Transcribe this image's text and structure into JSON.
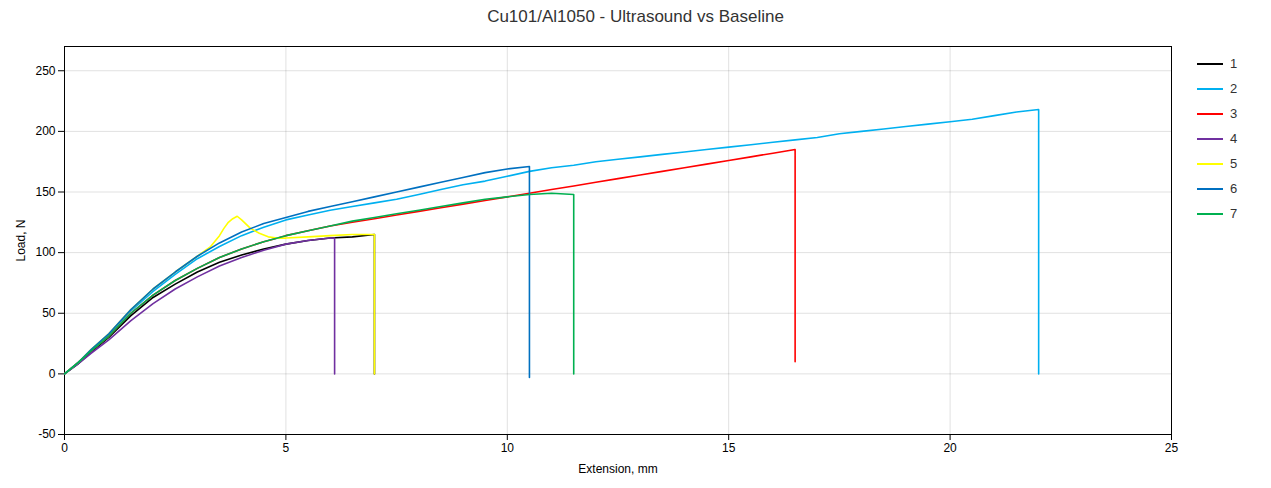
{
  "chart_data": {
    "type": "line",
    "title": "Cu101/Al1050 - Ultrasound vs Baseline",
    "xlabel": "Extension, mm",
    "ylabel": "Load, N",
    "xlim": [
      0,
      25
    ],
    "ylim": [
      -50,
      270
    ],
    "xticks": [
      0,
      5,
      10,
      15,
      20,
      25
    ],
    "yticks": [
      -50,
      0,
      50,
      100,
      150,
      200,
      250
    ],
    "grid": true,
    "legend": "right",
    "series": [
      {
        "name": "1",
        "color": "#000000",
        "x": [
          0,
          0.3,
          0.6,
          1.0,
          1.5,
          2.0,
          2.5,
          3.0,
          3.5,
          4.0,
          4.5,
          5.0,
          5.5,
          6.0,
          6.5,
          7.0,
          7.0
        ],
        "values": [
          0,
          8,
          18,
          30,
          48,
          63,
          74,
          84,
          92,
          98,
          103,
          107,
          110,
          112,
          113,
          115,
          0
        ]
      },
      {
        "name": "2",
        "color": "#00b0f0",
        "x": [
          0,
          0.3,
          0.6,
          1.0,
          1.5,
          2.0,
          2.5,
          3.0,
          3.5,
          4.0,
          4.5,
          5.0,
          5.5,
          6.0,
          6.5,
          7.0,
          7.5,
          8.0,
          8.5,
          9.0,
          9.5,
          10.0,
          10.5,
          11.0,
          11.5,
          12.0,
          12.5,
          13.0,
          13.5,
          14.0,
          14.5,
          15.0,
          15.5,
          16.0,
          16.5,
          17.0,
          17.5,
          18.0,
          18.5,
          19.0,
          19.5,
          20.0,
          20.5,
          21.0,
          21.5,
          22.0,
          22.0
        ],
        "values": [
          0,
          9,
          19,
          32,
          52,
          68,
          82,
          95,
          105,
          114,
          121,
          127,
          131,
          135,
          138,
          141,
          144,
          148,
          152,
          156,
          159,
          163,
          167,
          170,
          172,
          175,
          177,
          179,
          181,
          183,
          185,
          187,
          189,
          191,
          193,
          195,
          198,
          200,
          202,
          204,
          206,
          208,
          210,
          213,
          216,
          218,
          0
        ]
      },
      {
        "name": "3",
        "color": "#ff0000",
        "x": [
          0,
          0.3,
          0.6,
          1.0,
          1.5,
          2.0,
          2.5,
          3.0,
          3.5,
          4.0,
          4.5,
          5.0,
          5.5,
          6.0,
          6.5,
          7.0,
          7.5,
          8.0,
          8.5,
          9.0,
          9.5,
          10.0,
          10.5,
          11.0,
          11.5,
          12.0,
          12.5,
          13.0,
          13.5,
          14.0,
          14.5,
          15.0,
          15.5,
          16.0,
          16.5,
          16.5
        ],
        "values": [
          0,
          9,
          19,
          31,
          50,
          65,
          77,
          87,
          96,
          103,
          109,
          114,
          118,
          122,
          125,
          128,
          131,
          134,
          137,
          140,
          143,
          146,
          149,
          152,
          155,
          158,
          161,
          164,
          167,
          170,
          173,
          176,
          179,
          182,
          185,
          10
        ]
      },
      {
        "name": "4",
        "color": "#7030a0",
        "x": [
          0,
          0.3,
          0.6,
          1.0,
          1.5,
          2.0,
          2.5,
          3.0,
          3.5,
          4.0,
          4.5,
          5.0,
          5.5,
          6.0,
          6.1,
          6.1
        ],
        "values": [
          0,
          8,
          17,
          28,
          44,
          58,
          70,
          80,
          89,
          96,
          102,
          107,
          110,
          112,
          112,
          0
        ]
      },
      {
        "name": "5",
        "color": "#ffff00",
        "x": [
          0,
          0.3,
          0.6,
          1.0,
          1.5,
          2.0,
          2.5,
          3.0,
          3.3,
          3.5,
          3.6,
          3.7,
          3.8,
          3.9,
          4.0,
          4.2,
          4.4,
          4.6,
          4.8,
          5.0,
          5.5,
          6.0,
          6.5,
          7.0,
          7.0
        ],
        "values": [
          0,
          9,
          20,
          33,
          53,
          70,
          84,
          97,
          105,
          114,
          120,
          125,
          128,
          130,
          127,
          120,
          116,
          113,
          112,
          112,
          113,
          114,
          115,
          115,
          0
        ]
      },
      {
        "name": "6",
        "color": "#0070c0",
        "x": [
          0,
          0.3,
          0.6,
          1.0,
          1.5,
          2.0,
          2.5,
          3.0,
          3.5,
          4.0,
          4.5,
          5.0,
          5.5,
          6.0,
          6.5,
          7.0,
          7.5,
          8.0,
          8.5,
          9.0,
          9.5,
          10.0,
          10.5,
          10.5
        ],
        "values": [
          0,
          9,
          20,
          33,
          53,
          70,
          84,
          97,
          108,
          117,
          124,
          129,
          134,
          138,
          142,
          146,
          150,
          154,
          158,
          162,
          166,
          169,
          171,
          -3
        ]
      },
      {
        "name": "7",
        "color": "#00b050",
        "x": [
          0,
          0.3,
          0.6,
          1.0,
          1.5,
          2.0,
          2.5,
          3.0,
          3.5,
          4.0,
          4.5,
          5.0,
          5.5,
          6.0,
          6.5,
          7.0,
          7.5,
          8.0,
          8.5,
          9.0,
          9.5,
          10.0,
          10.5,
          11.0,
          11.5,
          11.5
        ],
        "values": [
          0,
          9,
          19,
          31,
          50,
          65,
          77,
          87,
          96,
          103,
          109,
          114,
          118,
          122,
          126,
          129,
          132,
          135,
          138,
          141,
          144,
          146,
          148,
          149,
          148,
          0
        ]
      }
    ]
  }
}
